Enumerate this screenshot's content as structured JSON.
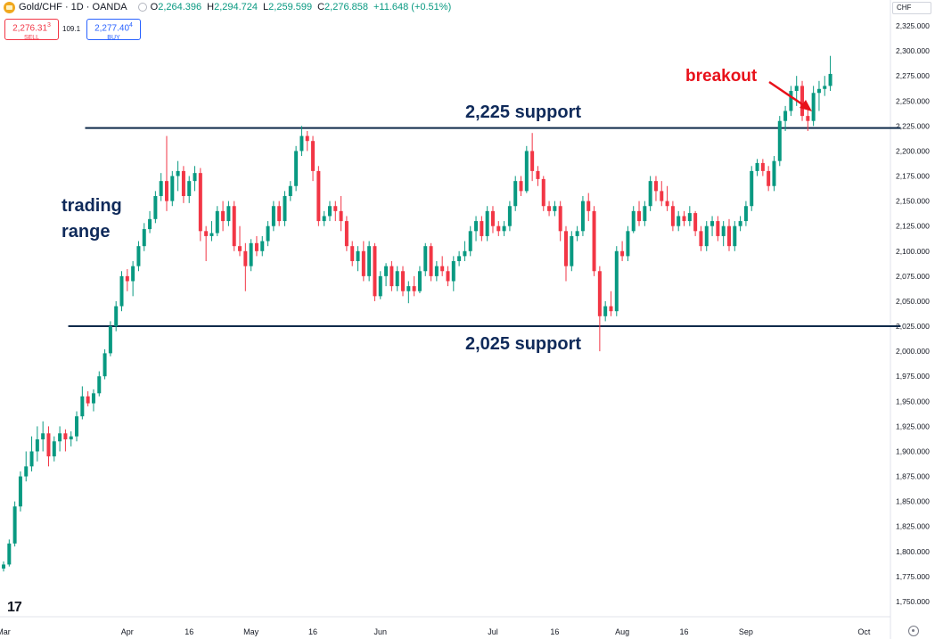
{
  "header": {
    "symbol": "Gold/CHF · 1D · OANDA",
    "ohlc": [
      {
        "label": "O",
        "value": "2,264.396"
      },
      {
        "label": "H",
        "value": "2,294.724"
      },
      {
        "label": "L",
        "value": "2,259.599"
      },
      {
        "label": "C",
        "value": "2,276.858"
      }
    ],
    "change": "+11.648 (+0.51%)"
  },
  "trade": {
    "sell_price": "2,276.31",
    "sell_sup": "3",
    "sell_label": "SELL",
    "spread": "109.1",
    "buy_price": "2,277.40",
    "buy_sup": "4",
    "buy_label": "BUY"
  },
  "currency": "CHF",
  "colors": {
    "up": "#089981",
    "down": "#f23645",
    "line": "#0f2a4a",
    "annotation_red": "#e8111a",
    "annotation_navy": "#0f2a5a"
  },
  "chart_data": {
    "type": "candlestick",
    "ylim": [
      1737,
      2338
    ],
    "y_ticks": [
      "2,325.000",
      "2,300.000",
      "2,275.000",
      "2,250.000",
      "2,225.000",
      "2,200.000",
      "2,175.000",
      "2,150.000",
      "2,125.000",
      "2,100.000",
      "2,075.000",
      "2,050.000",
      "2,025.000",
      "2,000.000",
      "1,975.000",
      "1,950.000",
      "1,925.000",
      "1,900.000",
      "1,875.000",
      "1,850.000",
      "1,825.000",
      "1,800.000",
      "1,775.000",
      "1,750.000"
    ],
    "x_ticks": [
      {
        "label": "Mar",
        "t": 0
      },
      {
        "label": "Apr",
        "t": 22
      },
      {
        "label": "16",
        "t": 33
      },
      {
        "label": "May",
        "t": 44
      },
      {
        "label": "16",
        "t": 55
      },
      {
        "label": "Jun",
        "t": 67
      },
      {
        "label": "Jul",
        "t": 87
      },
      {
        "label": "16",
        "t": 98
      },
      {
        "label": "Aug",
        "t": 110
      },
      {
        "label": "16",
        "t": 121
      },
      {
        "label": "Sep",
        "t": 132
      },
      {
        "label": "Oct",
        "t": 153
      }
    ],
    "candles": [
      {
        "o": 1783,
        "h": 1790,
        "l": 1780,
        "c": 1787
      },
      {
        "o": 1787,
        "h": 1812,
        "l": 1785,
        "c": 1808
      },
      {
        "o": 1808,
        "h": 1850,
        "l": 1805,
        "c": 1845
      },
      {
        "o": 1845,
        "h": 1880,
        "l": 1840,
        "c": 1875
      },
      {
        "o": 1875,
        "h": 1900,
        "l": 1870,
        "c": 1885
      },
      {
        "o": 1885,
        "h": 1915,
        "l": 1880,
        "c": 1900
      },
      {
        "o": 1900,
        "h": 1925,
        "l": 1890,
        "c": 1912
      },
      {
        "o": 1912,
        "h": 1930,
        "l": 1900,
        "c": 1918
      },
      {
        "o": 1918,
        "h": 1925,
        "l": 1885,
        "c": 1895
      },
      {
        "o": 1895,
        "h": 1915,
        "l": 1890,
        "c": 1910
      },
      {
        "o": 1910,
        "h": 1925,
        "l": 1900,
        "c": 1918
      },
      {
        "o": 1918,
        "h": 1922,
        "l": 1900,
        "c": 1912
      },
      {
        "o": 1912,
        "h": 1920,
        "l": 1905,
        "c": 1915
      },
      {
        "o": 1915,
        "h": 1940,
        "l": 1910,
        "c": 1935
      },
      {
        "o": 1935,
        "h": 1965,
        "l": 1932,
        "c": 1955
      },
      {
        "o": 1955,
        "h": 1960,
        "l": 1945,
        "c": 1948
      },
      {
        "o": 1948,
        "h": 1962,
        "l": 1940,
        "c": 1958
      },
      {
        "o": 1958,
        "h": 1980,
        "l": 1955,
        "c": 1975
      },
      {
        "o": 1975,
        "h": 2002,
        "l": 1972,
        "c": 1998
      },
      {
        "o": 1998,
        "h": 2030,
        "l": 1995,
        "c": 2025
      },
      {
        "o": 2025,
        "h": 2050,
        "l": 2020,
        "c": 2045
      },
      {
        "o": 2045,
        "h": 2080,
        "l": 2040,
        "c": 2075
      },
      {
        "o": 2075,
        "h": 2082,
        "l": 2060,
        "c": 2070
      },
      {
        "o": 2070,
        "h": 2090,
        "l": 2055,
        "c": 2085
      },
      {
        "o": 2085,
        "h": 2110,
        "l": 2080,
        "c": 2105
      },
      {
        "o": 2105,
        "h": 2128,
        "l": 2100,
        "c": 2122
      },
      {
        "o": 2122,
        "h": 2140,
        "l": 2118,
        "c": 2132
      },
      {
        "o": 2132,
        "h": 2160,
        "l": 2128,
        "c": 2155
      },
      {
        "o": 2155,
        "h": 2178,
        "l": 2150,
        "c": 2170
      },
      {
        "o": 2170,
        "h": 2215,
        "l": 2140,
        "c": 2150
      },
      {
        "o": 2150,
        "h": 2180,
        "l": 2145,
        "c": 2175
      },
      {
        "o": 2175,
        "h": 2190,
        "l": 2160,
        "c": 2180
      },
      {
        "o": 2180,
        "h": 2185,
        "l": 2148,
        "c": 2155
      },
      {
        "o": 2155,
        "h": 2175,
        "l": 2148,
        "c": 2170
      },
      {
        "o": 2170,
        "h": 2185,
        "l": 2160,
        "c": 2178
      },
      {
        "o": 2178,
        "h": 2183,
        "l": 2110,
        "c": 2120
      },
      {
        "o": 2120,
        "h": 2125,
        "l": 2090,
        "c": 2115
      },
      {
        "o": 2115,
        "h": 2130,
        "l": 2110,
        "c": 2118
      },
      {
        "o": 2118,
        "h": 2145,
        "l": 2115,
        "c": 2140
      },
      {
        "o": 2140,
        "h": 2150,
        "l": 2120,
        "c": 2130
      },
      {
        "o": 2130,
        "h": 2150,
        "l": 2125,
        "c": 2145
      },
      {
        "o": 2145,
        "h": 2150,
        "l": 2100,
        "c": 2105
      },
      {
        "o": 2105,
        "h": 2125,
        "l": 2095,
        "c": 2100
      },
      {
        "o": 2100,
        "h": 2108,
        "l": 2060,
        "c": 2085
      },
      {
        "o": 2085,
        "h": 2112,
        "l": 2080,
        "c": 2108
      },
      {
        "o": 2108,
        "h": 2115,
        "l": 2095,
        "c": 2100
      },
      {
        "o": 2100,
        "h": 2115,
        "l": 2095,
        "c": 2110
      },
      {
        "o": 2110,
        "h": 2130,
        "l": 2105,
        "c": 2125
      },
      {
        "o": 2125,
        "h": 2150,
        "l": 2120,
        "c": 2145
      },
      {
        "o": 2145,
        "h": 2150,
        "l": 2125,
        "c": 2130
      },
      {
        "o": 2130,
        "h": 2160,
        "l": 2125,
        "c": 2155
      },
      {
        "o": 2155,
        "h": 2170,
        "l": 2150,
        "c": 2165
      },
      {
        "o": 2165,
        "h": 2205,
        "l": 2160,
        "c": 2200
      },
      {
        "o": 2200,
        "h": 2225,
        "l": 2195,
        "c": 2215
      },
      {
        "o": 2215,
        "h": 2220,
        "l": 2200,
        "c": 2210
      },
      {
        "o": 2210,
        "h": 2215,
        "l": 2170,
        "c": 2180
      },
      {
        "o": 2180,
        "h": 2185,
        "l": 2125,
        "c": 2130
      },
      {
        "o": 2130,
        "h": 2140,
        "l": 2125,
        "c": 2135
      },
      {
        "o": 2135,
        "h": 2150,
        "l": 2130,
        "c": 2145
      },
      {
        "o": 2145,
        "h": 2150,
        "l": 2130,
        "c": 2140
      },
      {
        "o": 2140,
        "h": 2155,
        "l": 2120,
        "c": 2130
      },
      {
        "o": 2130,
        "h": 2135,
        "l": 2100,
        "c": 2105
      },
      {
        "o": 2105,
        "h": 2110,
        "l": 2085,
        "c": 2090
      },
      {
        "o": 2090,
        "h": 2105,
        "l": 2080,
        "c": 2100
      },
      {
        "o": 2100,
        "h": 2110,
        "l": 2070,
        "c": 2075
      },
      {
        "o": 2075,
        "h": 2110,
        "l": 2070,
        "c": 2105
      },
      {
        "o": 2105,
        "h": 2108,
        "l": 2050,
        "c": 2055
      },
      {
        "o": 2055,
        "h": 2080,
        "l": 2052,
        "c": 2075
      },
      {
        "o": 2075,
        "h": 2088,
        "l": 2065,
        "c": 2085
      },
      {
        "o": 2085,
        "h": 2090,
        "l": 2060,
        "c": 2065
      },
      {
        "o": 2065,
        "h": 2085,
        "l": 2060,
        "c": 2080
      },
      {
        "o": 2080,
        "h": 2085,
        "l": 2055,
        "c": 2060
      },
      {
        "o": 2060,
        "h": 2070,
        "l": 2048,
        "c": 2065
      },
      {
        "o": 2065,
        "h": 2075,
        "l": 2055,
        "c": 2060
      },
      {
        "o": 2060,
        "h": 2085,
        "l": 2058,
        "c": 2080
      },
      {
        "o": 2080,
        "h": 2108,
        "l": 2075,
        "c": 2105
      },
      {
        "o": 2105,
        "h": 2108,
        "l": 2070,
        "c": 2075
      },
      {
        "o": 2075,
        "h": 2090,
        "l": 2070,
        "c": 2085
      },
      {
        "o": 2085,
        "h": 2095,
        "l": 2075,
        "c": 2080
      },
      {
        "o": 2080,
        "h": 2085,
        "l": 2065,
        "c": 2070
      },
      {
        "o": 2070,
        "h": 2095,
        "l": 2060,
        "c": 2090
      },
      {
        "o": 2090,
        "h": 2100,
        "l": 2085,
        "c": 2095
      },
      {
        "o": 2095,
        "h": 2110,
        "l": 2090,
        "c": 2100
      },
      {
        "o": 2100,
        "h": 2125,
        "l": 2095,
        "c": 2120
      },
      {
        "o": 2120,
        "h": 2135,
        "l": 2110,
        "c": 2130
      },
      {
        "o": 2130,
        "h": 2135,
        "l": 2110,
        "c": 2115
      },
      {
        "o": 2115,
        "h": 2145,
        "l": 2110,
        "c": 2140
      },
      {
        "o": 2140,
        "h": 2145,
        "l": 2118,
        "c": 2125
      },
      {
        "o": 2125,
        "h": 2130,
        "l": 2115,
        "c": 2120
      },
      {
        "o": 2120,
        "h": 2130,
        "l": 2115,
        "c": 2125
      },
      {
        "o": 2125,
        "h": 2150,
        "l": 2120,
        "c": 2145
      },
      {
        "o": 2145,
        "h": 2175,
        "l": 2140,
        "c": 2170
      },
      {
        "o": 2170,
        "h": 2175,
        "l": 2155,
        "c": 2160
      },
      {
        "o": 2160,
        "h": 2205,
        "l": 2158,
        "c": 2200
      },
      {
        "o": 2200,
        "h": 2218,
        "l": 2170,
        "c": 2180
      },
      {
        "o": 2180,
        "h": 2185,
        "l": 2165,
        "c": 2172
      },
      {
        "o": 2172,
        "h": 2175,
        "l": 2140,
        "c": 2145
      },
      {
        "o": 2145,
        "h": 2150,
        "l": 2135,
        "c": 2140
      },
      {
        "o": 2140,
        "h": 2150,
        "l": 2135,
        "c": 2145
      },
      {
        "o": 2145,
        "h": 2150,
        "l": 2110,
        "c": 2120
      },
      {
        "o": 2120,
        "h": 2125,
        "l": 2070,
        "c": 2085
      },
      {
        "o": 2085,
        "h": 2120,
        "l": 2080,
        "c": 2115
      },
      {
        "o": 2115,
        "h": 2125,
        "l": 2110,
        "c": 2120
      },
      {
        "o": 2120,
        "h": 2155,
        "l": 2115,
        "c": 2150
      },
      {
        "o": 2150,
        "h": 2158,
        "l": 2130,
        "c": 2140
      },
      {
        "o": 2140,
        "h": 2145,
        "l": 2075,
        "c": 2080
      },
      {
        "o": 2080,
        "h": 2085,
        "l": 2000,
        "c": 2035
      },
      {
        "o": 2035,
        "h": 2050,
        "l": 2030,
        "c": 2045
      },
      {
        "o": 2045,
        "h": 2060,
        "l": 2035,
        "c": 2040
      },
      {
        "o": 2040,
        "h": 2105,
        "l": 2035,
        "c": 2100
      },
      {
        "o": 2100,
        "h": 2110,
        "l": 2090,
        "c": 2095
      },
      {
        "o": 2095,
        "h": 2125,
        "l": 2090,
        "c": 2120
      },
      {
        "o": 2120,
        "h": 2145,
        "l": 2118,
        "c": 2140
      },
      {
        "o": 2140,
        "h": 2150,
        "l": 2125,
        "c": 2130
      },
      {
        "o": 2130,
        "h": 2150,
        "l": 2125,
        "c": 2145
      },
      {
        "o": 2145,
        "h": 2175,
        "l": 2140,
        "c": 2170
      },
      {
        "o": 2170,
        "h": 2175,
        "l": 2150,
        "c": 2160
      },
      {
        "o": 2160,
        "h": 2170,
        "l": 2145,
        "c": 2150
      },
      {
        "o": 2150,
        "h": 2165,
        "l": 2140,
        "c": 2145
      },
      {
        "o": 2145,
        "h": 2150,
        "l": 2120,
        "c": 2125
      },
      {
        "o": 2125,
        "h": 2140,
        "l": 2120,
        "c": 2135
      },
      {
        "o": 2135,
        "h": 2140,
        "l": 2125,
        "c": 2130
      },
      {
        "o": 2130,
        "h": 2145,
        "l": 2125,
        "c": 2138
      },
      {
        "o": 2138,
        "h": 2140,
        "l": 2115,
        "c": 2120
      },
      {
        "o": 2120,
        "h": 2125,
        "l": 2100,
        "c": 2105
      },
      {
        "o": 2105,
        "h": 2130,
        "l": 2100,
        "c": 2125
      },
      {
        "o": 2125,
        "h": 2135,
        "l": 2115,
        "c": 2130
      },
      {
        "o": 2130,
        "h": 2135,
        "l": 2110,
        "c": 2115
      },
      {
        "o": 2115,
        "h": 2130,
        "l": 2105,
        "c": 2125
      },
      {
        "o": 2125,
        "h": 2132,
        "l": 2100,
        "c": 2105
      },
      {
        "o": 2105,
        "h": 2130,
        "l": 2100,
        "c": 2125
      },
      {
        "o": 2125,
        "h": 2135,
        "l": 2120,
        "c": 2130
      },
      {
        "o": 2130,
        "h": 2150,
        "l": 2125,
        "c": 2145
      },
      {
        "o": 2145,
        "h": 2185,
        "l": 2140,
        "c": 2180
      },
      {
        "o": 2180,
        "h": 2192,
        "l": 2175,
        "c": 2188
      },
      {
        "o": 2188,
        "h": 2192,
        "l": 2175,
        "c": 2180
      },
      {
        "o": 2180,
        "h": 2185,
        "l": 2160,
        "c": 2165
      },
      {
        "o": 2165,
        "h": 2195,
        "l": 2160,
        "c": 2190
      },
      {
        "o": 2190,
        "h": 2235,
        "l": 2185,
        "c": 2230
      },
      {
        "o": 2230,
        "h": 2245,
        "l": 2220,
        "c": 2240
      },
      {
        "o": 2240,
        "h": 2265,
        "l": 2235,
        "c": 2260
      },
      {
        "o": 2260,
        "h": 2275,
        "l": 2245,
        "c": 2265
      },
      {
        "o": 2265,
        "h": 2270,
        "l": 2230,
        "c": 2235
      },
      {
        "o": 2235,
        "h": 2245,
        "l": 2220,
        "c": 2230
      },
      {
        "o": 2230,
        "h": 2265,
        "l": 2225,
        "c": 2258
      },
      {
        "o": 2258,
        "h": 2270,
        "l": 2240,
        "c": 2262
      },
      {
        "o": 2262,
        "h": 2275,
        "l": 2255,
        "c": 2265
      },
      {
        "o": 2265,
        "h": 2295,
        "l": 2260,
        "c": 2277
      }
    ],
    "lines": [
      {
        "label": "2,225 support",
        "value": 2223,
        "t_start": 14.5,
        "t_end": 159.5
      },
      {
        "label": "2,025 support",
        "value": 2025,
        "t_start": 11.5,
        "t_end": 159.5
      }
    ],
    "annotations": [
      {
        "text": "trading",
        "role": "range-label-1"
      },
      {
        "text": "range",
        "role": "range-label-2"
      },
      {
        "text": "breakout",
        "role": "breakout-label"
      }
    ]
  }
}
